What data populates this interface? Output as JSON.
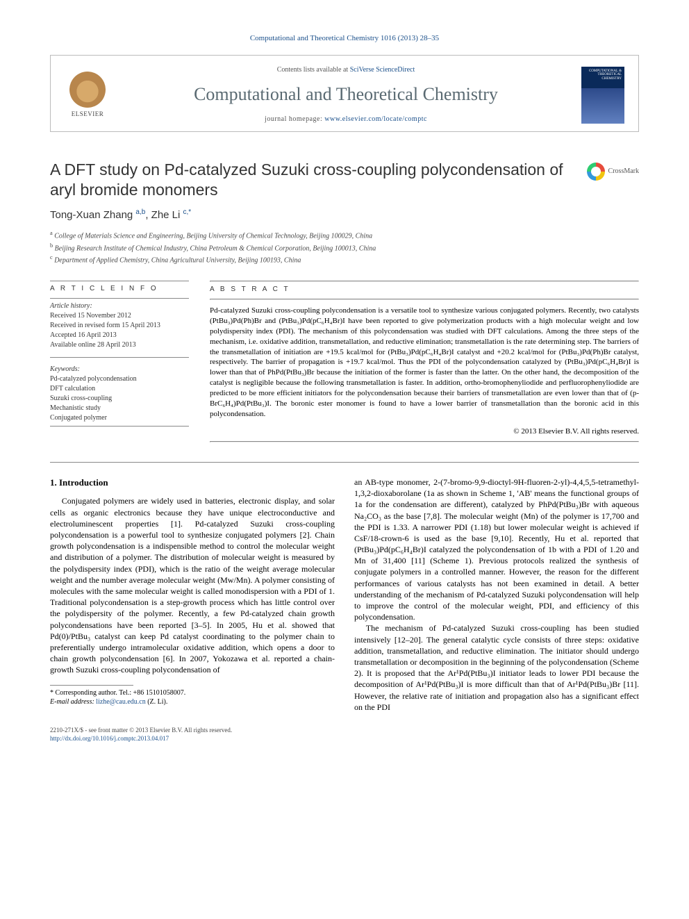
{
  "journal_top_line": "Computational and Theoretical Chemistry 1016 (2013) 28–35",
  "masthead": {
    "contents_prefix": "Contents lists available at ",
    "contents_link": "SciVerse ScienceDirect",
    "journal": "Computational and Theoretical Chemistry",
    "homepage_prefix": "journal homepage: ",
    "homepage_url": "www.elsevier.com/locate/comptc",
    "publisher": "ELSEVIER",
    "cover_label": "COMPUTATIONAL & THEORETICAL CHEMISTRY"
  },
  "title": "A DFT study on Pd-catalyzed Suzuki cross-coupling polycondensation of aryl bromide monomers",
  "crossmark_label": "CrossMark",
  "authors_html": "Tong-Xuan Zhang <sup>a,b</sup>, Zhe Li <sup>c,*</sup>",
  "affiliations": [
    "a College of Materials Science and Engineering, Beijing University of Chemical Technology, Beijing 100029, China",
    "b Beijing Research Institute of Chemical Industry, China Petroleum & Chemical Corporation, Beijing 100013, China",
    "c Department of Applied Chemistry, China Agricultural University, Beijing 100193, China"
  ],
  "article_info": {
    "heading": "A R T I C L E   I N F O",
    "history_label": "Article history:",
    "history": [
      "Received 15 November 2012",
      "Received in revised form 15 April 2013",
      "Accepted 16 April 2013",
      "Available online 28 April 2013"
    ],
    "keywords_label": "Keywords:",
    "keywords": [
      "Pd-catalyzed polycondensation",
      "DFT calculation",
      "Suzuki cross-coupling",
      "Mechanistic study",
      "Conjugated polymer"
    ]
  },
  "abstract": {
    "heading": "A B S T R A C T",
    "body": "Pd-catalyzed Suzuki cross-coupling polycondensation is a versatile tool to synthesize various conjugated polymers. Recently, two catalysts (PtBu₃)Pd(Ph)Br and (PtBu₃)Pd(pC₆H₄Br)I have been reported to give polymerization products with a high molecular weight and low polydispersity index (PDI). The mechanism of this polycondensation was studied with DFT calculations. Among the three steps of the mechanism, i.e. oxidative addition, transmetallation, and reductive elimination; transmetallation is the rate determining step. The barriers of the transmetallation of initiation are +19.5 kcal/mol for (PtBu₃)Pd(pC₆H₄Br)I catalyst and +20.2 kcal/mol for (PtBu₃)Pd(Ph)Br catalyst, respectively. The barrier of propagation is +19.7 kcal/mol. Thus the PDI of the polycondensation catalyzed by (PtBu₃)Pd(pC₆H₄Br)I is lower than that of PhPd(PtBu₃)Br because the initiation of the former is faster than the latter. On the other hand, the decomposition of the catalyst is negligible because the following transmetallation is faster. In addition, ortho-bromophenyliodide and perfluorophenyliodide are predicted to be more efficient initiators for the polycondensation because their barriers of transmetallation are even lower than that of (p-BrC₆H₄)Pd(PtBu₃)I. The boronic ester monomer is found to have a lower barrier of transmetallation than the boronic acid in this polycondensation.",
    "copyright": "© 2013 Elsevier B.V. All rights reserved."
  },
  "section1": {
    "heading": "1. Introduction",
    "p1": "Conjugated polymers are widely used in batteries, electronic display, and solar cells as organic electronics because they have unique electroconductive and electroluminescent properties [1]. Pd-catalyzed Suzuki cross-coupling polycondensation is a powerful tool to synthesize conjugated polymers [2]. Chain growth polycondensation is a indispensible method to control the molecular weight and distribution of a polymer. The distribution of molecular weight is measured by the polydispersity index (PDI), which is the ratio of the weight average molecular weight and the number average molecular weight (Mw/Mn). A polymer consisting of molecules with the same molecular weight is called monodispersion with a PDI of 1. Traditional polycondensation is a step-growth process which has little control over the polydispersity of the polymer. Recently, a few Pd-catalyzed chain growth polycondensations have been reported [3–5]. In 2005, Hu et al. showed that Pd(0)/PtBu₃ catalyst can keep Pd catalyst coordinating to the polymer chain to preferentially undergo intramolecular oxidative addition, which opens a door to chain growth polycondensation [6]. In 2007, Yokozawa et al. reported a chain-growth Suzuki cross-coupling polycondensation of",
    "p1b": "an AB-type monomer, 2-(7-bromo-9,9-dioctyl-9H-fluoren-2-yl)-4,4,5,5-tetramethyl-1,3,2-dioxaborolane (1a as shown in Scheme 1, 'AB' means the functional groups of 1a for the condensation are different), catalyzed by PhPd(PtBu₃)Br with aqueous Na₂CO₃ as the base [7,8]. The molecular weight (Mn) of the polymer is 17,700 and the PDI is 1.33. A narrower PDI (1.18) but lower molecular weight is achieved if CsF/18-crown-6 is used as the base [9,10]. Recently, Hu et al. reported that (PtBu₃)Pd(pC₆H₄Br)I catalyzed the polycondensation of 1b with a PDI of 1.20 and Mn of 31,400 [11] (Scheme 1). Previous protocols realized the synthesis of conjugate polymers in a controlled manner. However, the reason for the different performances of various catalysts has not been examined in detail. A better understanding of the mechanism of Pd-catalyzed Suzuki polycondensation will help to improve the control of the molecular weight, PDI, and efficiency of this polycondensation.",
    "p2": "The mechanism of Pd-catalyzed Suzuki cross-coupling has been studied intensively [12–20]. The general catalytic cycle consists of three steps: oxidative addition, transmetallation, and reductive elimination. The initiator should undergo transmetallation or decomposition in the beginning of the polycondensation (Scheme 2). It is proposed that the Ar¹Pd(PtBu₃)I initiator leads to lower PDI because the decomposition of Ar¹Pd(PtBu₃)I is more difficult than that of Ar¹Pd(PtBu₃)Br [11]. However, the relative rate of initiation and propagation also has a significant effect on the PDI"
  },
  "footnotes": {
    "corr": "* Corresponding author. Tel.: +86 15101058007.",
    "email_label": "E-mail address:",
    "email": "lizhe@cau.edu.cn",
    "email_suffix": "(Z. Li)."
  },
  "bottom": {
    "line1": "2210-271X/$ - see front matter © 2013 Elsevier B.V. All rights reserved.",
    "doi": "http://dx.doi.org/10.1016/j.comptc.2013.04.017"
  },
  "colors": {
    "link": "#1a4f8a",
    "journal_title": "#5a6a72",
    "border": "#bbbbbb",
    "rule": "#888888"
  }
}
